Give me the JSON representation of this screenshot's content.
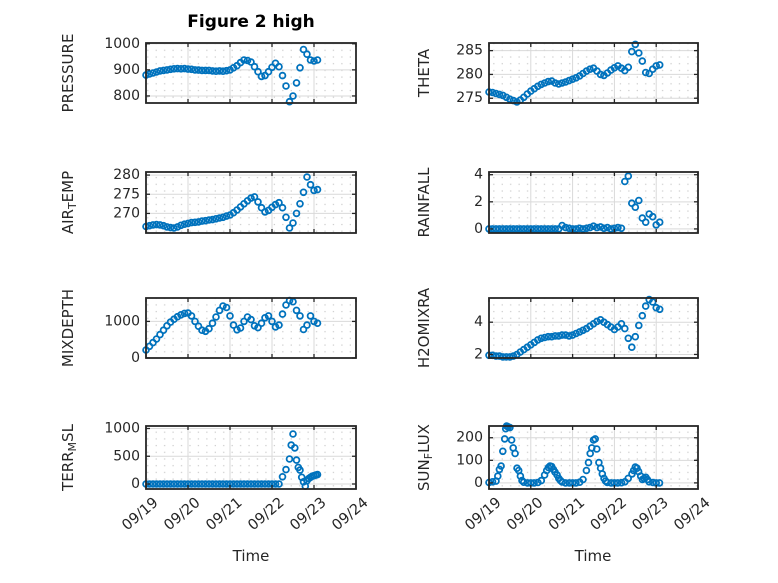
{
  "title": "Figure 2 high",
  "xlabel": "Time",
  "colors": {
    "marker": "#0072BD",
    "axis_box": "#262626",
    "major_grid": "#d9d9d9",
    "minor_dot": "#c9c9c9",
    "tick_text": "#262626",
    "title_text": "#000000",
    "background": "#ffffff"
  },
  "chart_data": {
    "type": "scatter",
    "marker": "open-circle",
    "grid": "major-solid-plus-minor-dotted",
    "x_axis": {
      "xlim": [
        0,
        5
      ],
      "tick_values": [
        0,
        1,
        2,
        3,
        4,
        5
      ],
      "tick_labels": [
        "09/19",
        "09/20",
        "09/21",
        "09/22",
        "09/23",
        "09/24"
      ],
      "label": "Time",
      "tick_label_rotation_deg": -40
    },
    "subplots": [
      {
        "id": "pressure",
        "row": 0,
        "col": 0,
        "ylabel_parts": [
          {
            "text": "PRESSURE",
            "sub": false
          }
        ],
        "ylim": [
          773,
          1003
        ],
        "yticks": [
          800,
          900,
          1000
        ],
        "series": {
          "t_start": 0,
          "t_step": 0.08333,
          "y": [
            880,
            884,
            888,
            892,
            896,
            898,
            900,
            902,
            904,
            905,
            904,
            905,
            903,
            902,
            900,
            899,
            898,
            898,
            898,
            896,
            895,
            896,
            895,
            897,
            900,
            908,
            916,
            928,
            938,
            936,
            930,
            912,
            893,
            875,
            878,
            893,
            910,
            925,
            912,
            878,
            838,
            778,
            800,
            850,
            908,
            978,
            960,
            938,
            934,
            938
          ]
        }
      },
      {
        "id": "theta",
        "row": 0,
        "col": 1,
        "ylabel_parts": [
          {
            "text": "THETA",
            "sub": false
          }
        ],
        "ylim": [
          274.0,
          286.6
        ],
        "yticks": [
          275,
          280,
          285
        ],
        "series": {
          "t_start": 0,
          "t_step": 0.08333,
          "y": [
            276.3,
            276.2,
            276.0,
            275.8,
            275.6,
            275.2,
            274.8,
            274.5,
            274.2,
            274.6,
            275.2,
            275.9,
            276.5,
            277.0,
            277.5,
            277.9,
            278.2,
            278.5,
            278.6,
            278.2,
            278.0,
            278.2,
            278.4,
            278.7,
            279.0,
            279.3,
            279.7,
            280.2,
            280.7,
            281.1,
            281.3,
            280.7,
            280.0,
            279.8,
            280.3,
            280.9,
            281.4,
            281.8,
            281.3,
            280.8,
            281.5,
            284.8,
            286.3,
            284.5,
            282.8,
            280.4,
            280.2,
            281.1,
            281.8,
            282.0
          ]
        }
      },
      {
        "id": "air-temp",
        "row": 1,
        "col": 0,
        "ylabel_parts": [
          {
            "text": "AIR",
            "sub": false
          },
          {
            "text": "T",
            "sub": true
          },
          {
            "text": "EMP",
            "sub": false
          }
        ],
        "ylim": [
          264.9,
          280.8
        ],
        "yticks": [
          270,
          275,
          280
        ],
        "series": {
          "t_start": 0,
          "t_step": 0.08333,
          "y": [
            266.6,
            266.8,
            267.0,
            267.1,
            267.0,
            266.8,
            266.5,
            266.3,
            266.2,
            266.5,
            266.9,
            267.2,
            267.4,
            267.6,
            267.7,
            267.8,
            268.0,
            268.1,
            268.3,
            268.4,
            268.6,
            268.8,
            269.0,
            269.3,
            269.6,
            270.2,
            270.9,
            271.7,
            272.5,
            273.3,
            274.0,
            274.3,
            273.0,
            271.5,
            270.4,
            270.8,
            271.6,
            272.3,
            272.8,
            271.5,
            269.0,
            266.2,
            267.5,
            270.0,
            272.5,
            275.5,
            279.5,
            277.5,
            276.0,
            276.2
          ]
        }
      },
      {
        "id": "rainfall",
        "row": 1,
        "col": 1,
        "ylabel_parts": [
          {
            "text": "RAINFALL",
            "sub": false
          }
        ],
        "ylim": [
          -0.3,
          4.2
        ],
        "yticks": [
          0,
          2,
          4
        ],
        "series": {
          "t_start": 0,
          "t_step": 0.08333,
          "y": [
            0,
            0,
            0,
            0,
            0,
            0,
            0,
            0,
            0,
            0,
            0,
            0,
            0,
            0,
            0,
            0,
            0,
            0,
            0,
            0,
            0,
            0.25,
            0.1,
            0.05,
            0,
            0,
            0.05,
            0,
            0.05,
            0.1,
            0.2,
            0.1,
            0.15,
            0.05,
            0.1,
            0,
            0.05,
            0.1,
            0.05,
            3.5,
            3.9,
            1.9,
            1.6,
            2.1,
            0.8,
            0.5,
            1.1,
            0.9,
            0.3,
            0.5
          ]
        }
      },
      {
        "id": "mixdepth",
        "row": 2,
        "col": 0,
        "ylabel_parts": [
          {
            "text": "MIXDEPTH",
            "sub": false
          }
        ],
        "ylim": [
          0,
          1640
        ],
        "yticks": [
          0,
          1000
        ],
        "series": {
          "t_start": 0,
          "t_step": 0.08333,
          "y": [
            220,
            320,
            420,
            520,
            640,
            760,
            880,
            980,
            1060,
            1130,
            1180,
            1220,
            1230,
            1150,
            1000,
            870,
            760,
            730,
            800,
            950,
            1120,
            1300,
            1420,
            1380,
            1150,
            900,
            770,
            820,
            1000,
            1120,
            1050,
            880,
            830,
            950,
            1100,
            1150,
            1000,
            850,
            900,
            1200,
            1450,
            1570,
            1540,
            1300,
            1150,
            780,
            900,
            1150,
            1000,
            950
          ]
        }
      },
      {
        "id": "h2omixra",
        "row": 2,
        "col": 1,
        "ylabel_parts": [
          {
            "text": "H2OMIXRA",
            "sub": false
          }
        ],
        "ylim": [
          1.78,
          5.5
        ],
        "yticks": [
          2,
          4
        ],
        "series": {
          "t_start": 0,
          "t_step": 0.08333,
          "y": [
            1.95,
            1.95,
            1.9,
            1.9,
            1.85,
            1.85,
            1.85,
            1.9,
            2.0,
            2.15,
            2.3,
            2.45,
            2.6,
            2.75,
            2.9,
            3.0,
            3.05,
            3.1,
            3.1,
            3.15,
            3.15,
            3.2,
            3.2,
            3.15,
            3.2,
            3.3,
            3.4,
            3.5,
            3.6,
            3.75,
            3.9,
            4.05,
            4.15,
            4.0,
            3.85,
            3.7,
            3.55,
            3.7,
            3.9,
            3.6,
            3.0,
            2.45,
            3.1,
            3.8,
            4.4,
            5.0,
            5.4,
            5.25,
            4.9,
            4.8
          ]
        }
      },
      {
        "id": "terr-msl",
        "row": 3,
        "col": 0,
        "ylabel_parts": [
          {
            "text": "TERR",
            "sub": false
          },
          {
            "text": "M",
            "sub": true
          },
          {
            "text": "SL",
            "sub": false
          }
        ],
        "ylim": [
          -90,
          1045
        ],
        "yticks": [
          0,
          500,
          1000
        ],
        "series": {
          "points": [
            [
              0,
              0
            ],
            [
              0.083,
              0
            ],
            [
              0.167,
              0
            ],
            [
              0.25,
              0
            ],
            [
              0.333,
              0
            ],
            [
              0.417,
              0
            ],
            [
              0.5,
              0
            ],
            [
              0.583,
              0
            ],
            [
              0.667,
              0
            ],
            [
              0.75,
              0
            ],
            [
              0.833,
              0
            ],
            [
              0.917,
              0
            ],
            [
              1,
              0
            ],
            [
              1.083,
              0
            ],
            [
              1.167,
              0
            ],
            [
              1.25,
              0
            ],
            [
              1.333,
              0
            ],
            [
              1.417,
              0
            ],
            [
              1.5,
              0
            ],
            [
              1.583,
              0
            ],
            [
              1.667,
              0
            ],
            [
              1.75,
              0
            ],
            [
              1.833,
              0
            ],
            [
              1.917,
              0
            ],
            [
              2,
              0
            ],
            [
              2.083,
              0
            ],
            [
              2.167,
              0
            ],
            [
              2.25,
              0
            ],
            [
              2.333,
              0
            ],
            [
              2.417,
              0
            ],
            [
              2.5,
              0
            ],
            [
              2.583,
              0
            ],
            [
              2.667,
              0
            ],
            [
              2.75,
              0
            ],
            [
              2.833,
              0
            ],
            [
              2.917,
              0
            ],
            [
              3,
              0
            ],
            [
              3.083,
              0
            ],
            [
              3.167,
              0
            ],
            [
              3.25,
              130
            ],
            [
              3.333,
              260
            ],
            [
              3.417,
              450
            ],
            [
              3.458,
              700
            ],
            [
              3.5,
              900
            ],
            [
              3.542,
              650
            ],
            [
              3.583,
              430
            ],
            [
              3.625,
              300
            ],
            [
              3.667,
              250
            ],
            [
              3.708,
              120
            ],
            [
              3.75,
              40
            ],
            [
              3.792,
              -40
            ],
            [
              3.833,
              60
            ],
            [
              3.875,
              100
            ],
            [
              3.917,
              120
            ],
            [
              3.958,
              140
            ],
            [
              4,
              150
            ],
            [
              4.042,
              160
            ],
            [
              4.083,
              170
            ]
          ]
        }
      },
      {
        "id": "sun-flux",
        "row": 3,
        "col": 1,
        "ylabel_parts": [
          {
            "text": "SUN",
            "sub": false
          },
          {
            "text": "F",
            "sub": true
          },
          {
            "text": "LUX",
            "sub": false
          }
        ],
        "ylim": [
          -27,
          252
        ],
        "yticks": [
          0,
          100,
          200
        ],
        "series": {
          "points": [
            [
              0,
              2
            ],
            [
              0.083,
              5
            ],
            [
              0.167,
              8
            ],
            [
              0.21,
              30
            ],
            [
              0.25,
              60
            ],
            [
              0.29,
              75
            ],
            [
              0.33,
              140
            ],
            [
              0.375,
              195
            ],
            [
              0.4,
              240
            ],
            [
              0.42,
              252
            ],
            [
              0.44,
              250
            ],
            [
              0.46,
              248
            ],
            [
              0.5,
              245
            ],
            [
              0.54,
              190
            ],
            [
              0.58,
              155
            ],
            [
              0.625,
              130
            ],
            [
              0.67,
              65
            ],
            [
              0.71,
              55
            ],
            [
              0.75,
              30
            ],
            [
              0.79,
              10
            ],
            [
              0.83,
              3
            ],
            [
              0.92,
              0
            ],
            [
              1,
              0
            ],
            [
              1.08,
              0
            ],
            [
              1.17,
              2
            ],
            [
              1.25,
              10
            ],
            [
              1.33,
              35
            ],
            [
              1.38,
              55
            ],
            [
              1.42,
              68
            ],
            [
              1.46,
              75
            ],
            [
              1.5,
              72
            ],
            [
              1.54,
              60
            ],
            [
              1.58,
              48
            ],
            [
              1.63,
              35
            ],
            [
              1.67,
              20
            ],
            [
              1.71,
              10
            ],
            [
              1.75,
              4
            ],
            [
              1.83,
              0
            ],
            [
              1.92,
              0
            ],
            [
              2,
              0
            ],
            [
              2.08,
              0
            ],
            [
              2.17,
              3
            ],
            [
              2.25,
              15
            ],
            [
              2.33,
              55
            ],
            [
              2.38,
              90
            ],
            [
              2.42,
              130
            ],
            [
              2.46,
              155
            ],
            [
              2.5,
              190
            ],
            [
              2.54,
              195
            ],
            [
              2.58,
              150
            ],
            [
              2.63,
              90
            ],
            [
              2.67,
              65
            ],
            [
              2.71,
              40
            ],
            [
              2.75,
              20
            ],
            [
              2.79,
              8
            ],
            [
              2.83,
              2
            ],
            [
              2.92,
              0
            ],
            [
              3,
              0
            ],
            [
              3.08,
              0
            ],
            [
              3.17,
              1
            ],
            [
              3.25,
              5
            ],
            [
              3.33,
              20
            ],
            [
              3.42,
              40
            ],
            [
              3.46,
              55
            ],
            [
              3.5,
              70
            ],
            [
              3.54,
              65
            ],
            [
              3.58,
              50
            ],
            [
              3.63,
              30
            ],
            [
              3.67,
              15
            ],
            [
              3.71,
              20
            ],
            [
              3.75,
              25
            ],
            [
              3.79,
              15
            ],
            [
              3.83,
              5
            ],
            [
              3.92,
              2
            ],
            [
              4,
              0
            ],
            [
              4.08,
              0
            ]
          ]
        }
      }
    ]
  }
}
